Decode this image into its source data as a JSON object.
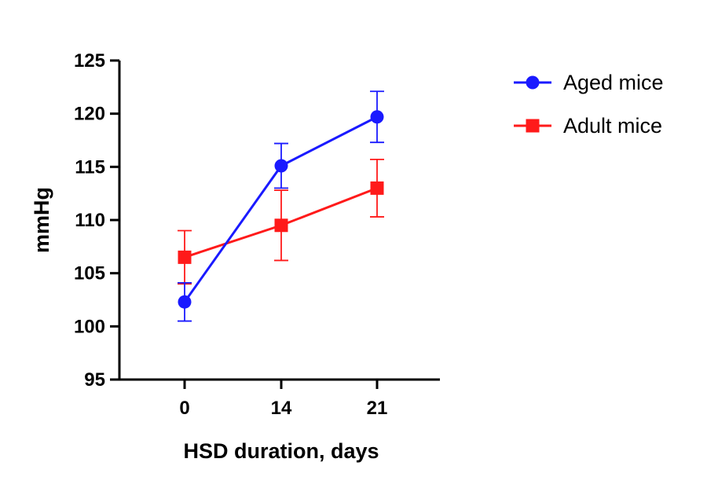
{
  "chart_data": {
    "type": "line",
    "xlabel": "HSD duration, days",
    "ylabel": "mmHg",
    "x": [
      0,
      14,
      21
    ],
    "xticks": [
      "0",
      "14",
      "21"
    ],
    "ylim": [
      95,
      125
    ],
    "yticks": [
      "95",
      "100",
      "105",
      "110",
      "115",
      "120",
      "125"
    ],
    "grid": false,
    "legend_position": "top-right",
    "series": [
      {
        "name": "Aged mice",
        "color": "#1a1aff",
        "marker": "circle",
        "values": [
          102.3,
          115.1,
          119.7
        ],
        "error": [
          1.8,
          2.1,
          2.4
        ]
      },
      {
        "name": "Adult mice",
        "color": "#ff1a1a",
        "marker": "square",
        "values": [
          106.5,
          109.5,
          113.0
        ],
        "error": [
          2.5,
          3.3,
          2.7
        ]
      }
    ]
  }
}
